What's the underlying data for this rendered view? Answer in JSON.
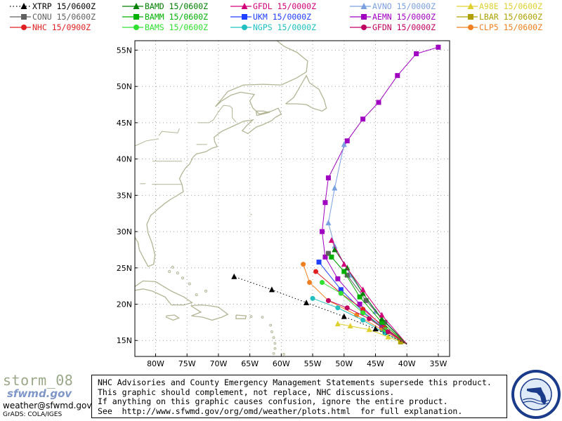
{
  "legend": [
    {
      "name": "XTRP",
      "time": "15/0600Z",
      "color": "#000000",
      "marker": "triangle",
      "dotted": true
    },
    {
      "name": "BAMD",
      "time": "15/0600Z",
      "color": "#008000",
      "marker": "triangle"
    },
    {
      "name": "GFDL",
      "time": "15/0000Z",
      "color": "#d0007a",
      "marker": "triangle"
    },
    {
      "name": "AVNO",
      "time": "15/0000Z",
      "color": "#7aa0e0",
      "marker": "triangle"
    },
    {
      "name": "A98E",
      "time": "15/0600Z",
      "color": "#e0d030",
      "marker": "triangle"
    },
    {
      "name": "CONU",
      "time": "15/0600Z",
      "color": "#606060",
      "marker": "square"
    },
    {
      "name": "BAMM",
      "time": "15/0600Z",
      "color": "#00b000",
      "marker": "square"
    },
    {
      "name": "UKM",
      "time": "15/0000Z",
      "color": "#2040ff",
      "marker": "square"
    },
    {
      "name": "AEMN",
      "time": "15/0000Z",
      "color": "#a000c0",
      "marker": "square"
    },
    {
      "name": "LBAR",
      "time": "15/0600Z",
      "color": "#b0a000",
      "marker": "square"
    },
    {
      "name": "NHC",
      "time": "15/0900Z",
      "color": "#e02020",
      "marker": "circle"
    },
    {
      "name": "BAMS",
      "time": "15/0600Z",
      "color": "#30e030",
      "marker": "circle"
    },
    {
      "name": "NGPS",
      "time": "15/0000Z",
      "color": "#20c0c0",
      "marker": "circle"
    },
    {
      "name": "GFDN",
      "time": "15/0000Z",
      "color": "#c00060",
      "marker": "circle"
    },
    {
      "name": "CLP5",
      "time": "15/0600Z",
      "color": "#f08020",
      "marker": "circle"
    }
  ],
  "map": {
    "lon_ticks": [
      "80W",
      "75W",
      "70W",
      "65W",
      "60W",
      "55W",
      "50W",
      "45W",
      "40W",
      "35W"
    ],
    "lat_ticks": [
      "15N",
      "20N",
      "25N",
      "30N",
      "35N",
      "40N",
      "45N",
      "50N",
      "55N"
    ],
    "coast_color": "#b4b496"
  },
  "tracks": {
    "XTRP": [
      [
        -40,
        14.5
      ],
      [
        -45,
        16.6
      ],
      [
        -50,
        18.3
      ],
      [
        -56,
        20.2
      ],
      [
        -61.5,
        22.0
      ],
      [
        -67.5,
        23.8
      ]
    ],
    "AEMN": [
      [
        -40,
        14.5
      ],
      [
        -44,
        17.0
      ],
      [
        -47.5,
        20.0
      ],
      [
        -51,
        23.5
      ],
      [
        -53,
        26.5
      ],
      [
        -53.5,
        30.0
      ],
      [
        -53,
        34
      ],
      [
        -52.5,
        37.4
      ],
      [
        -49.5,
        42.5
      ],
      [
        -47,
        45.5
      ],
      [
        -44.5,
        47.8
      ],
      [
        -41.5,
        51.5
      ],
      [
        -38.5,
        54.5
      ],
      [
        -35,
        55.4
      ]
    ],
    "AVNO": [
      [
        -40,
        14.5
      ],
      [
        -45,
        19.0
      ],
      [
        -49,
        24.0
      ],
      [
        -51.5,
        28.0
      ],
      [
        -52.5,
        31.2
      ],
      [
        -51.5,
        36.0
      ],
      [
        -50,
        42.0
      ]
    ],
    "GFDL": [
      [
        -40,
        14.5
      ],
      [
        -44,
        18.5
      ],
      [
        -47,
        22.0
      ],
      [
        -50,
        25.5
      ],
      [
        -52,
        28.8
      ]
    ],
    "BAMD": [
      [
        -40,
        14.5
      ],
      [
        -44,
        18.0
      ],
      [
        -47,
        21.5
      ],
      [
        -49.5,
        25.0
      ],
      [
        -51.5,
        27.5
      ]
    ],
    "CONU": [
      [
        -40,
        14.5
      ],
      [
        -43.5,
        17.5
      ],
      [
        -46.5,
        20.5
      ],
      [
        -49.5,
        24.0
      ],
      [
        -52.5,
        27.0
      ]
    ],
    "BAMM": [
      [
        -40,
        14.5
      ],
      [
        -44,
        17.5
      ],
      [
        -47.5,
        21.0
      ],
      [
        -50,
        24.5
      ],
      [
        -52,
        26.5
      ]
    ],
    "UKM": [
      [
        -40,
        14.5
      ],
      [
        -43.5,
        16.5
      ],
      [
        -47,
        19.0
      ],
      [
        -50.5,
        22.0
      ],
      [
        -54,
        25.8
      ]
    ],
    "NHC": [
      [
        -40,
        14.5
      ],
      [
        -43.5,
        16.8
      ],
      [
        -47,
        19.3
      ],
      [
        -50.5,
        21.5
      ],
      [
        -54.5,
        24.5
      ]
    ],
    "BAMS": [
      [
        -40,
        14.5
      ],
      [
        -43.5,
        16.5
      ],
      [
        -47,
        18.8
      ],
      [
        -50.5,
        21.5
      ],
      [
        -53.5,
        23.0
      ]
    ],
    "NGPS": [
      [
        -40,
        14.5
      ],
      [
        -43.5,
        16.0
      ],
      [
        -47,
        17.8
      ],
      [
        -51,
        19.5
      ],
      [
        -55,
        20.8
      ]
    ],
    "GFDN": [
      [
        -40,
        14.5
      ],
      [
        -43,
        16.2
      ],
      [
        -46,
        18.0
      ],
      [
        -49.5,
        19.5
      ],
      [
        -52.5,
        20.5
      ]
    ],
    "CLP5": [
      [
        -40,
        14.5
      ],
      [
        -44,
        16.5
      ],
      [
        -48,
        18.5
      ],
      [
        -52.5,
        20.5
      ],
      [
        -55.5,
        23.0
      ],
      [
        -56.5,
        25.5
      ]
    ],
    "A98E": [
      [
        -40,
        14.5
      ],
      [
        -43,
        15.5
      ],
      [
        -46,
        16.5
      ],
      [
        -49,
        17.0
      ],
      [
        -51,
        17.3
      ]
    ],
    "LBAR": [
      [
        -40,
        14.5
      ],
      [
        -41,
        14.8
      ]
    ]
  },
  "footer": {
    "title": "storm_08",
    "logo": "sfwmd.gov",
    "email": "weather@sfwmd.gov",
    "grads": "GrADS: COLA/IGES"
  },
  "disclaimer": [
    "NHC Advisories and County Emergency Management Statements supersede this product.",
    "This graphic should complement, not replace, NHC discussions.",
    "If anything on this graphic causes confusion, ignore the entire product.",
    "See  http://www.sfwmd.gov/org/omd/weather/plots.html  for full explanation."
  ],
  "seal": {
    "text_top": "SOUTH FLORIDA WATER MANAGEMENT",
    "text_bottom": "DISTRICT",
    "ring_color": "#1a3a8a",
    "fill_color": "#dfeaf8"
  }
}
